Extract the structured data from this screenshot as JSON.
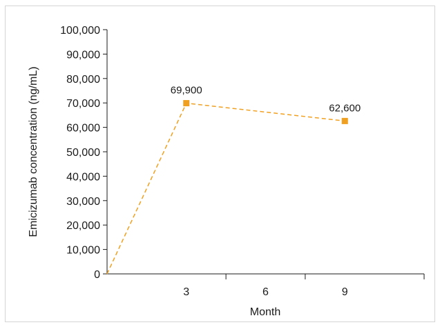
{
  "chart_data": {
    "type": "line",
    "title": "",
    "xlabel": "Month",
    "ylabel": "Emicizumab concentration (ng/mL)",
    "x_ticks": [
      3,
      6,
      9
    ],
    "xlim": [
      0,
      12
    ],
    "ylim": [
      0,
      100000
    ],
    "y_ticks": [
      0,
      10000,
      20000,
      30000,
      40000,
      50000,
      60000,
      70000,
      80000,
      90000,
      100000
    ],
    "y_tick_labels": [
      "0",
      "10,000",
      "20,000",
      "30,000",
      "40,000",
      "50,000",
      "60,000",
      "70,000",
      "80,000",
      "90,000",
      "100,000"
    ],
    "series": [
      {
        "x": [
          0,
          3,
          9
        ],
        "values": [
          0,
          69900,
          62600
        ],
        "data_labels": [
          "",
          "69,900",
          "62,600"
        ],
        "marker": "square",
        "line_style": "dashed"
      }
    ],
    "colors": {
      "series": "#f0a020",
      "axis": "#1a1a1a",
      "frame": "#d4d4d4"
    },
    "grid": false,
    "legend": "none"
  }
}
